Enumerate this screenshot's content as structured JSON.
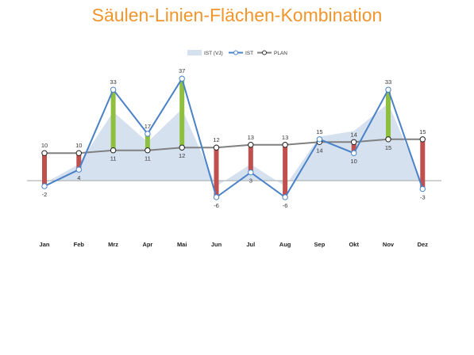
{
  "chart_data": {
    "type": "bar",
    "title": "Säulen-Linien-Flächen-Kombination",
    "categories": [
      "Jan",
      "Feb",
      "Mrz",
      "Apr",
      "Mai",
      "Jun",
      "Jul",
      "Aug",
      "Sep",
      "Okt",
      "Nov",
      "Dez"
    ],
    "series": [
      {
        "name": "IST (VJ)",
        "type": "area",
        "values": [
          -1,
          6,
          25,
          14,
          26,
          -2,
          6,
          -2,
          16,
          18,
          28,
          -1
        ]
      },
      {
        "name": "IST",
        "type": "line",
        "values": [
          -2,
          4,
          33,
          17,
          37,
          -6,
          3,
          -6,
          15,
          10,
          33,
          -3
        ]
      },
      {
        "name": "PLAN",
        "type": "line",
        "values": [
          10,
          10,
          11,
          11,
          12,
          12,
          13,
          13,
          14,
          14,
          15,
          15
        ]
      }
    ],
    "ist_labels": [
      "-2",
      "4",
      "33",
      "17",
      "37",
      "-6",
      "3",
      "-6",
      "15",
      "10",
      "33",
      "-3"
    ],
    "plan_labels": [
      "10",
      "10",
      "11",
      "11",
      "12",
      "12",
      "13",
      "13",
      "14",
      "14",
      "15",
      "15"
    ],
    "ylim": [
      -22,
      44
    ],
    "grid": false,
    "legend": "top-center",
    "colors": {
      "ist_vj": "#d6e1f0",
      "ist": "#4a82c8",
      "plan": "#808080",
      "positive": "#8fbf3f",
      "negative": "#c0504d",
      "title": "#f0962c"
    }
  }
}
